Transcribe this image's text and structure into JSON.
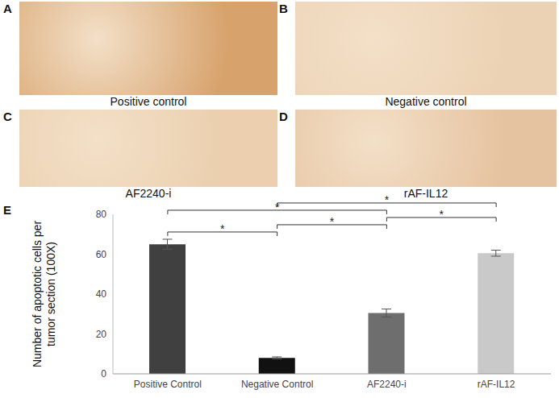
{
  "panels": [
    {
      "label": "A",
      "caption": "Positive control"
    },
    {
      "label": "B",
      "caption": "Negative control"
    },
    {
      "label": "C",
      "caption": "AF2240-i"
    },
    {
      "label": "D",
      "caption": "rAF-IL12"
    }
  ],
  "chart_panel": "E",
  "chart_data": {
    "type": "bar",
    "y_label": "Number of apoptotic cells per tumor section (100X)",
    "categories": [
      "Positive Control",
      "Negative Control",
      "AF2240-i",
      "rAF-IL12"
    ],
    "values": [
      65,
      8,
      30.5,
      60.5
    ],
    "errors": [
      2.5,
      0.5,
      2,
      1.5
    ],
    "colors": [
      "#404040",
      "#111111",
      "#6e6e6e",
      "#c9c9c9"
    ],
    "ylim": [
      0,
      80
    ],
    "yticks": [
      0,
      20,
      40,
      60,
      80
    ],
    "grid": false,
    "annotations": [
      {
        "text": "*",
        "from": "Positive Control",
        "to": "Negative Control"
      },
      {
        "text": "*",
        "from": "Negative Control",
        "to": "AF2240-i"
      },
      {
        "text": "*",
        "from": "AF2240-i",
        "to": "rAF-IL12"
      },
      {
        "text": "*",
        "from": "Positive Control",
        "to": "AF2240-i"
      },
      {
        "text": "*",
        "from": "Negative Control",
        "to": "rAF-IL12"
      }
    ]
  }
}
